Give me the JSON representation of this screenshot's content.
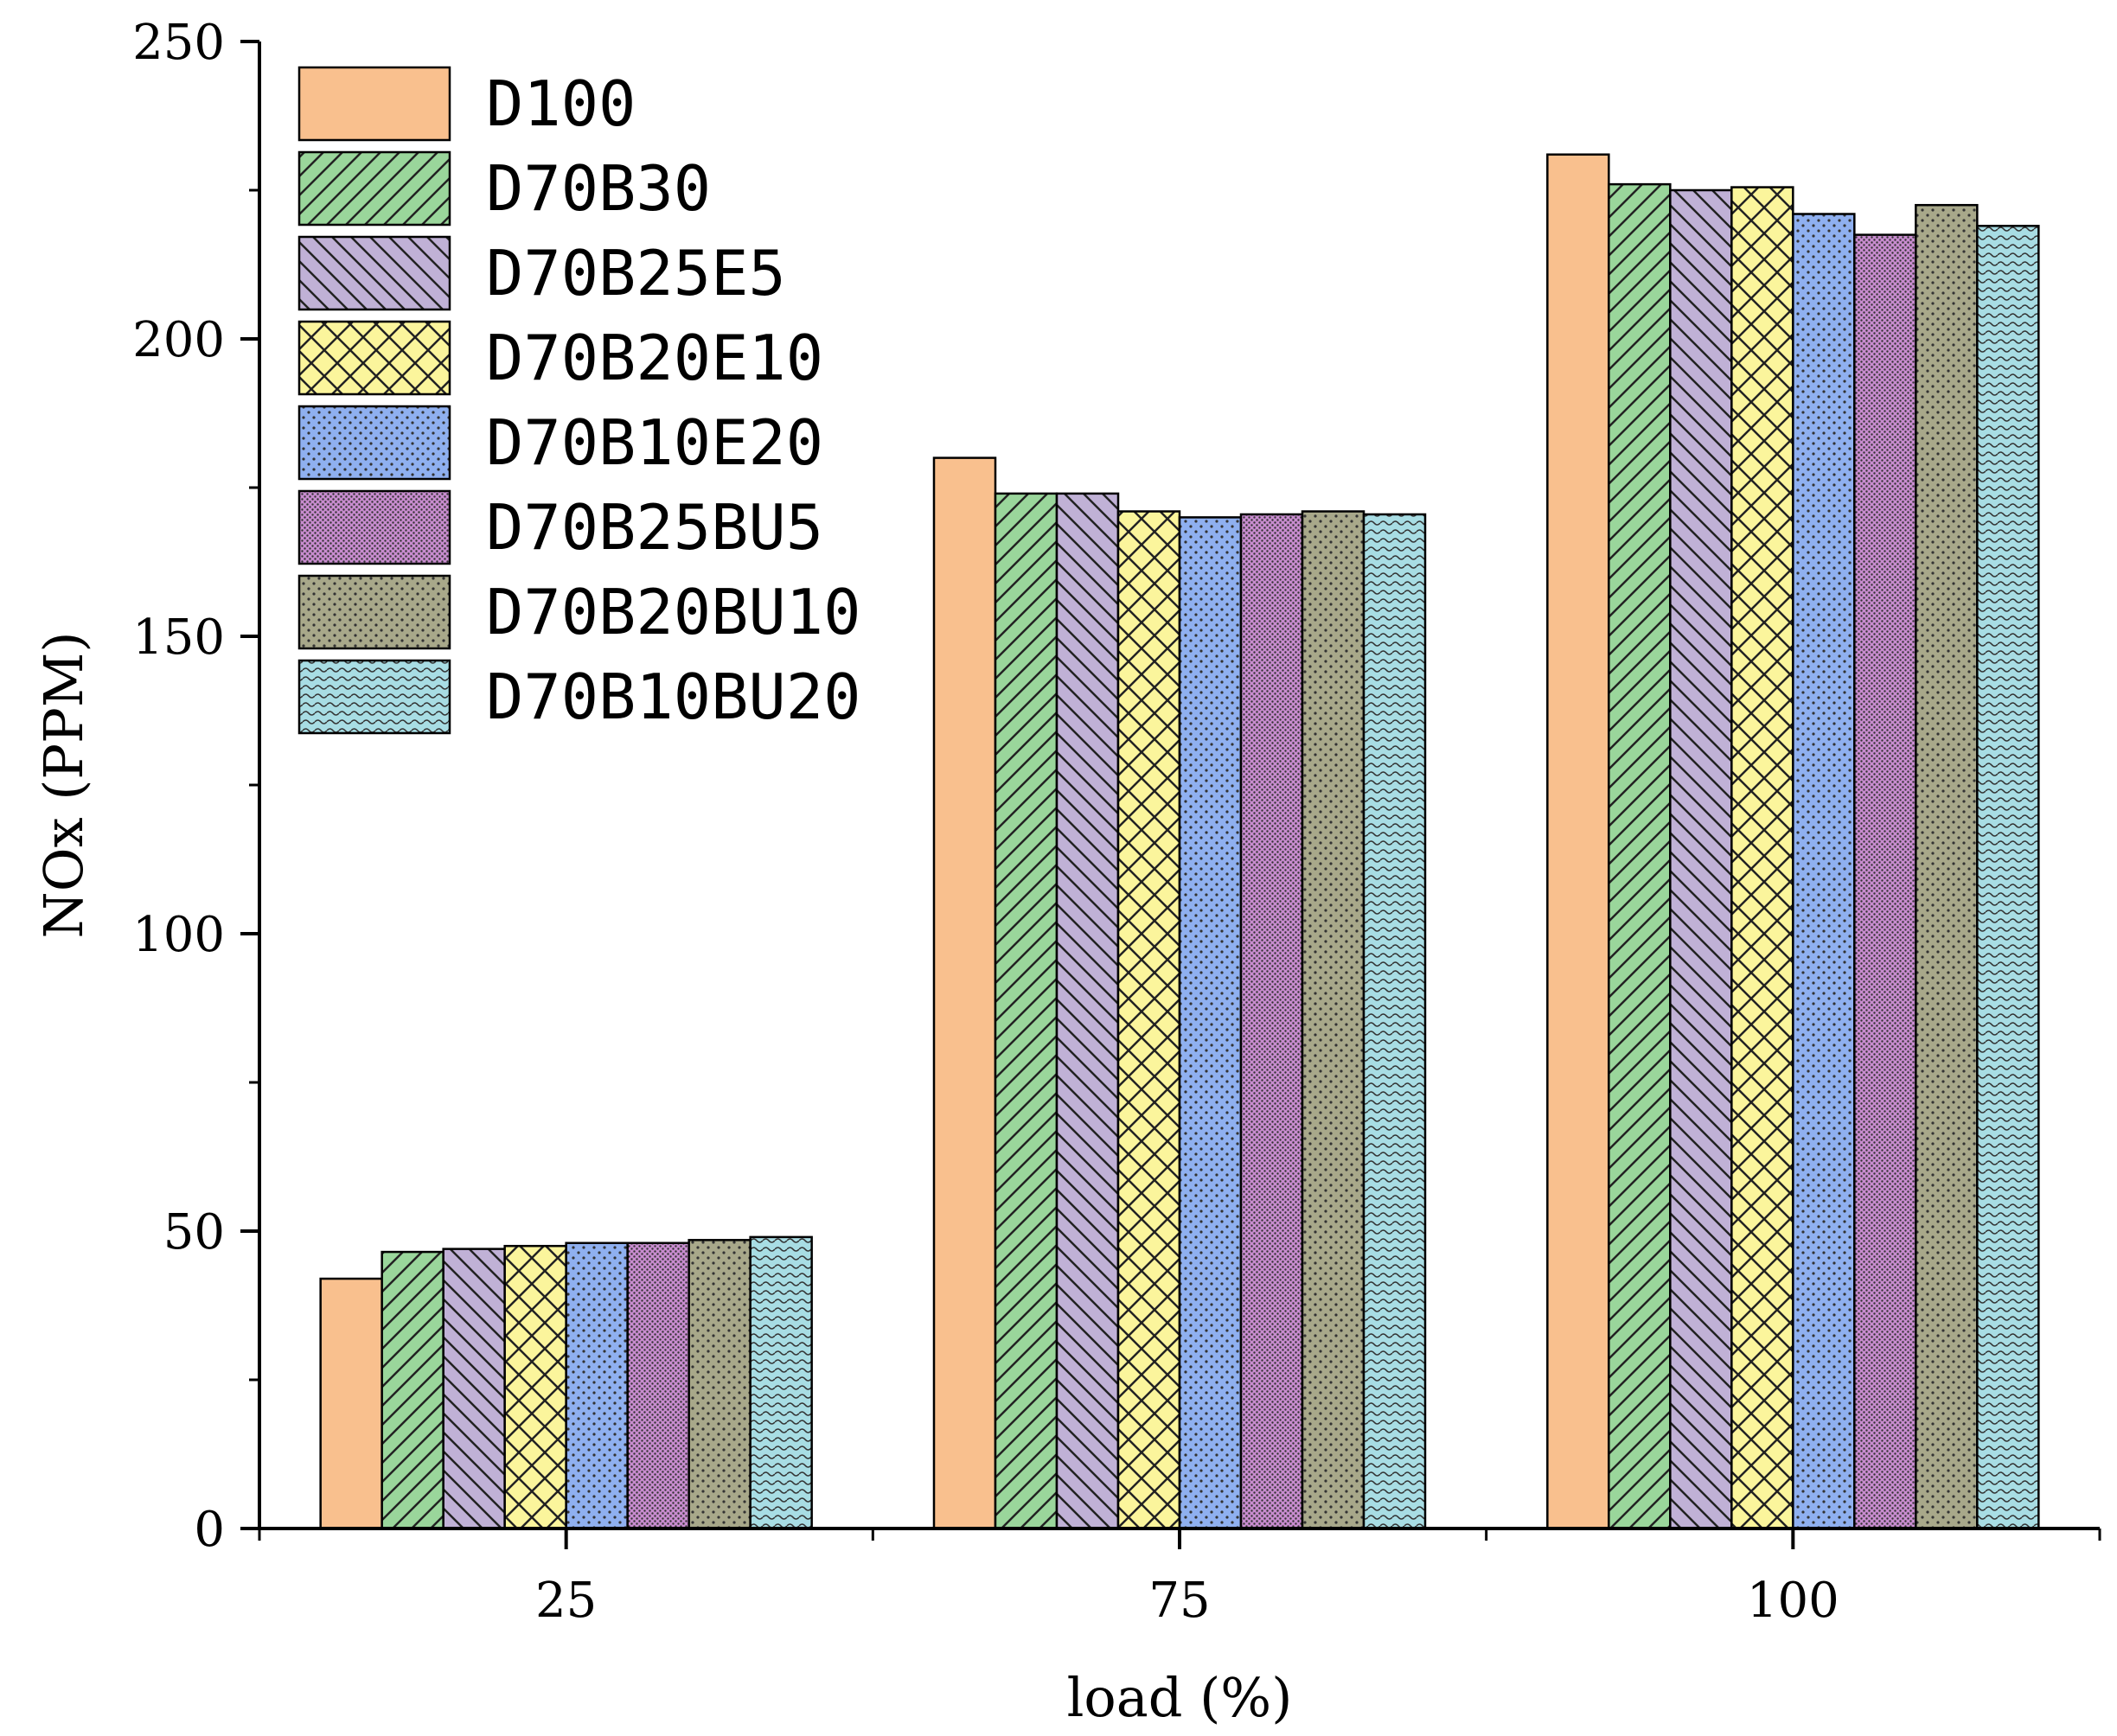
{
  "chart_data": {
    "type": "bar",
    "xlabel": "load (%)",
    "ylabel": "NOx (PPM)",
    "categories": [
      "25",
      "75",
      "100"
    ],
    "ylim": [
      0,
      250
    ],
    "yticks": [
      0,
      50,
      100,
      150,
      200,
      250
    ],
    "grid": false,
    "legend_position": "top-left",
    "series": [
      {
        "name": "D100",
        "values": [
          42,
          180,
          231
        ],
        "color": "#f9c08e",
        "pattern": "none"
      },
      {
        "name": "D70B30",
        "values": [
          46.5,
          174,
          226
        ],
        "color": "#9ad69b",
        "pattern": "diag-up"
      },
      {
        "name": "D70B25E5",
        "values": [
          47,
          174,
          225
        ],
        "color": "#c0b1d6",
        "pattern": "diag-down"
      },
      {
        "name": "D70B20E10",
        "values": [
          47.5,
          171,
          225.5
        ],
        "color": "#fbf59c",
        "pattern": "cross"
      },
      {
        "name": "D70B10E20",
        "values": [
          48,
          170,
          221
        ],
        "color": "#8fb0f0",
        "pattern": "dots"
      },
      {
        "name": "D70B25BU5",
        "values": [
          48,
          170.5,
          217.5
        ],
        "color": "#c88ccf",
        "pattern": "dense-dots"
      },
      {
        "name": "D70B20BU10",
        "values": [
          48.5,
          171,
          222.5
        ],
        "color": "#a8a88a",
        "pattern": "dots"
      },
      {
        "name": "D70B10BU20",
        "values": [
          49,
          170.5,
          219
        ],
        "color": "#a8dde4",
        "pattern": "waves"
      }
    ]
  }
}
